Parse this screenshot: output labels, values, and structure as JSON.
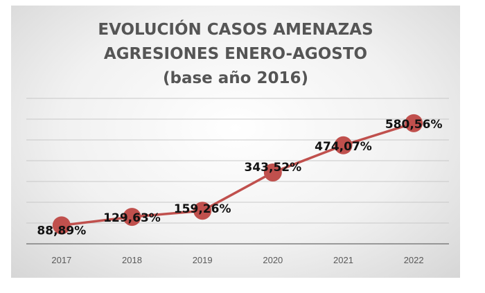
{
  "chart_data": {
    "type": "line",
    "title_lines": [
      "EVOLUCIÓN CASOS AMENAZAS",
      "AGRESIONES ENERO-AGOSTO",
      "(base año 2016)"
    ],
    "categories": [
      "2017",
      "2018",
      "2019",
      "2020",
      "2021",
      "2022"
    ],
    "values": [
      88.89,
      129.63,
      159.26,
      343.52,
      474.07,
      580.56
    ],
    "data_labels": [
      "88,89%",
      "129,63%",
      "159,26%",
      "343,52%",
      "474,07%",
      "580,56%"
    ],
    "ylim": [
      0,
      700
    ],
    "y_axis_labels_shown": false,
    "grid": true,
    "line_color": "#c0504d",
    "marker_color": "#c0504d",
    "background_gradient": [
      "#ffffff",
      "#d6d6d6"
    ]
  }
}
